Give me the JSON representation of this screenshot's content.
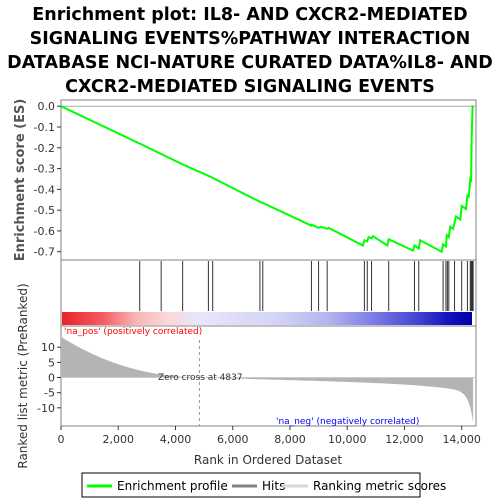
{
  "chart_data": {
    "type": "line",
    "title_lines": [
      "Enrichment plot: IL8- AND CXCR2-MEDIATED",
      "SIGNALING EVENTS%PATHWAY INTERACTION",
      "DATABASE NCI-NATURE CURATED DATA%IL8- AND",
      "CXCR2-MEDIATED SIGNALING EVENTS"
    ],
    "ylabel_top": "Enrichment score (ES)",
    "ylabel_bottom": "Ranked list metric (PreRanked)",
    "xlabel": "Rank in Ordered Dataset",
    "xlim": [
      0,
      14500
    ],
    "xticks": [
      0,
      2000,
      4000,
      6000,
      8000,
      10000,
      12000,
      14000
    ],
    "xtick_labels": [
      "0",
      "2,000",
      "4,000",
      "6,000",
      "8,000",
      "10,000",
      "12,000",
      "14,000"
    ],
    "top_ylim": [
      -0.74,
      0.03
    ],
    "top_yticks": [
      0.0,
      -0.1,
      -0.2,
      -0.3,
      -0.4,
      -0.5,
      -0.6,
      -0.7
    ],
    "top_ytick_labels": [
      "0.0",
      "-0.1",
      "-0.2",
      "-0.3",
      "-0.4",
      "-0.5",
      "-0.6",
      "-0.7"
    ],
    "bottom_ylim": [
      -16,
      17
    ],
    "bottom_yticks": [
      10,
      5,
      0,
      -5,
      -10
    ],
    "bottom_ytick_labels": [
      "10",
      "5",
      "0",
      "-5",
      "-10"
    ],
    "es_profile": {
      "x": [
        0,
        2750,
        2760,
        3500,
        4250,
        5150,
        5300,
        6950,
        7050,
        8750,
        8760,
        9000,
        9100,
        9300,
        9350,
        10550,
        10600,
        10700,
        10750,
        10850,
        10900,
        11400,
        11450,
        12300,
        12350,
        12500,
        12550,
        13300,
        13350,
        13450,
        13480,
        13550,
        13600,
        13700,
        13800,
        13950,
        14000,
        14150,
        14200,
        14250,
        14300,
        14330,
        14350,
        14380,
        14400
      ],
      "y": [
        0.0,
        -0.18,
        -0.18,
        -0.23,
        -0.28,
        -0.335,
        -0.345,
        -0.46,
        -0.465,
        -0.575,
        -0.57,
        -0.585,
        -0.58,
        -0.59,
        -0.585,
        -0.67,
        -0.645,
        -0.65,
        -0.63,
        -0.635,
        -0.625,
        -0.67,
        -0.64,
        -0.695,
        -0.67,
        -0.685,
        -0.645,
        -0.7,
        -0.665,
        -0.675,
        -0.62,
        -0.63,
        -0.58,
        -0.59,
        -0.53,
        -0.545,
        -0.48,
        -0.495,
        -0.43,
        -0.435,
        -0.35,
        -0.355,
        -0.14,
        -0.0,
        -0.0
      ]
    },
    "hits": [
      2750,
      3500,
      4250,
      5150,
      5300,
      6950,
      7050,
      8750,
      9000,
      9300,
      10600,
      10700,
      10850,
      11450,
      12350,
      12500,
      13350,
      13450,
      13500,
      13550,
      13750,
      14000,
      14200,
      14300,
      14330,
      14360,
      14380,
      14400
    ],
    "metric_zero_cross": 4837,
    "zero_cross_label": "Zero cross at 4837",
    "pos_label": "'na_pos' (positively correlated)",
    "neg_label": "'na_neg' (negatively correlated)",
    "legend": [
      "Enrichment profile",
      "Hits",
      "Ranking metric scores"
    ],
    "colors": {
      "es_line": "#00ff00",
      "hit_line": "#333333",
      "metric_fill": "#b4b4b4",
      "pos_label": "#ff0000",
      "neg_label": "#0000ff",
      "zero_line": "#999999"
    },
    "grid": false
  }
}
